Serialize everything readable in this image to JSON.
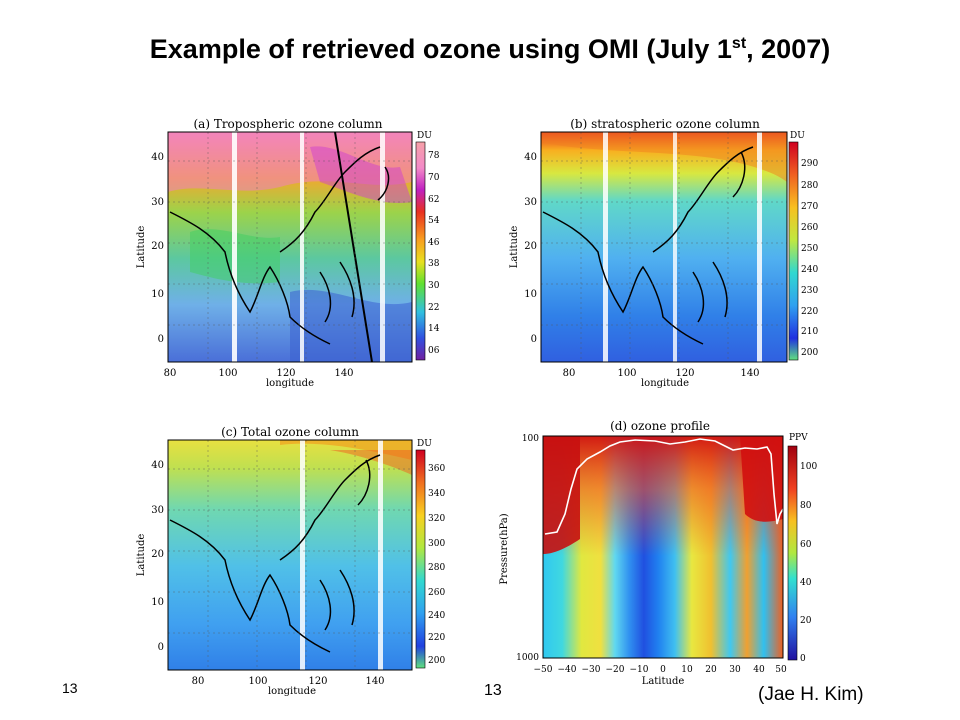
{
  "slide": {
    "title_main": "Example of retrieved ozone using OMI (July 1",
    "title_sup": "st",
    "title_tail": ", 2007)",
    "slide_number_left": "13",
    "slide_number_center": "13",
    "credit": "(Jae H. Kim)"
  },
  "panels": [
    {
      "id": "a",
      "title": "(a) Tropospheric ozone column",
      "unit": "DU",
      "xlabel": "longitude",
      "ylabel": "Latitude",
      "x_ticks": [
        "80",
        "100",
        "120",
        "140"
      ],
      "y_ticks": [
        "0",
        "10",
        "20",
        "30",
        "40"
      ],
      "colorbar_ticks": [
        "78",
        "70",
        "62",
        "54",
        "46",
        "38",
        "30",
        "22",
        "14",
        "06"
      ]
    },
    {
      "id": "b",
      "title": "(b) stratospheric ozone column",
      "unit": "DU",
      "xlabel": "longitude",
      "ylabel": "Latitude",
      "x_ticks": [
        "80",
        "100",
        "120",
        "140"
      ],
      "y_ticks": [
        "0",
        "10",
        "20",
        "30",
        "40"
      ],
      "colorbar_ticks": [
        "290",
        "280",
        "270",
        "260",
        "250",
        "240",
        "230",
        "220",
        "210",
        "200"
      ]
    },
    {
      "id": "c",
      "title": "(c) Total ozone column",
      "unit": "DU",
      "xlabel": "longitude",
      "ylabel": "Latitude",
      "x_ticks": [
        "80",
        "100",
        "120",
        "140"
      ],
      "y_ticks": [
        "0",
        "10",
        "20",
        "30",
        "40"
      ],
      "colorbar_ticks": [
        "360",
        "340",
        "320",
        "300",
        "280",
        "260",
        "240",
        "220",
        "200"
      ]
    },
    {
      "id": "d",
      "title": "(d) ozone profile",
      "unit": "PPV",
      "xlabel": "Latitude",
      "ylabel": "Pressure(hPa)",
      "x_ticks": [
        "−50",
        "−40",
        "−30",
        "−20",
        "−10",
        "0",
        "10",
        "20",
        "30",
        "40",
        "50"
      ],
      "y_ticks": [
        "100",
        "1000"
      ],
      "colorbar_ticks": [
        "100",
        "80",
        "60",
        "40",
        "20",
        "0"
      ]
    }
  ]
}
